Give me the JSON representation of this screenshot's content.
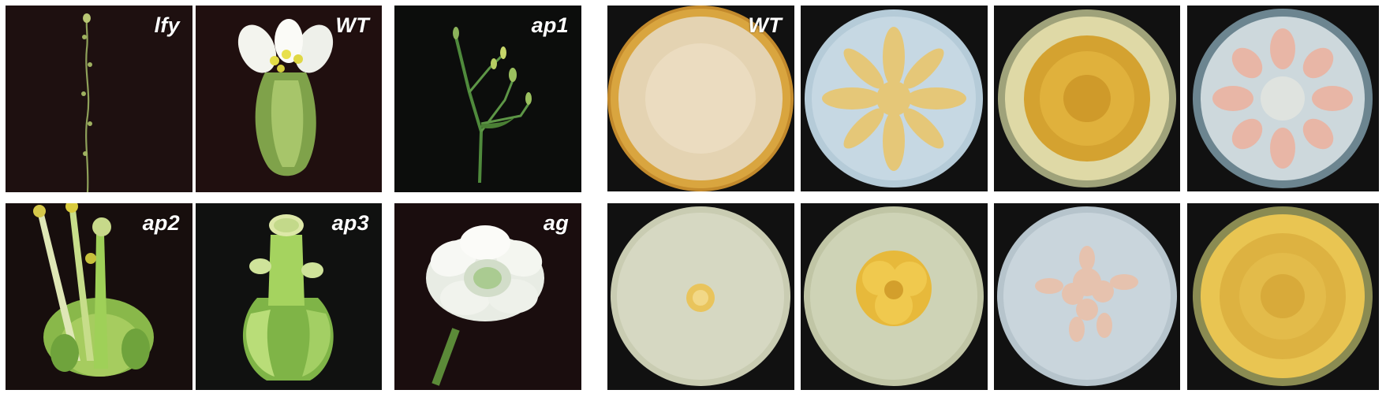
{
  "flower_panels": [
    {
      "label": "lfy"
    },
    {
      "label": "WT"
    },
    {
      "label": "ap1"
    },
    {
      "label": "ap2"
    },
    {
      "label": "ap3"
    },
    {
      "label": "ag"
    }
  ],
  "colony_panels": [
    {
      "label": "WT"
    },
    {
      "label": ""
    },
    {
      "label": ""
    },
    {
      "label": ""
    },
    {
      "label": ""
    },
    {
      "label": ""
    },
    {
      "label": ""
    },
    {
      "label": ""
    }
  ],
  "colors": {
    "flower_background": "#1c0f0e",
    "plate_background": "#101010",
    "stem_green": "#5e8a3a",
    "petal_white": "#f4f6f2",
    "colony_yellow": "#e7b941",
    "colony_pink": "#e6b7a6"
  }
}
